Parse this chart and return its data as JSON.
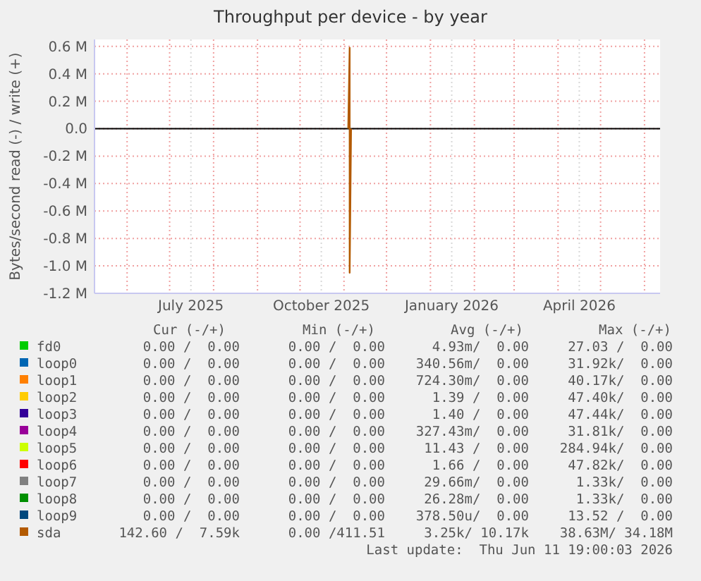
{
  "chart_data": {
    "type": "line",
    "title": "Throughput per device - by year",
    "ylabel": "Bytes/second read (-) / write (+)",
    "xlim": [
      "2025-05-09",
      "2026-06-12"
    ],
    "ylim": [
      -1.2,
      0.65
    ],
    "xticks": [
      {
        "value": "2025-06-01",
        "label": null
      },
      {
        "value": "2025-07-01",
        "label": null
      },
      {
        "value": "2025-07-16",
        "label": "July 2025"
      },
      {
        "value": "2025-08-01",
        "label": null
      },
      {
        "value": "2025-09-01",
        "label": null
      },
      {
        "value": "2025-10-01",
        "label": null
      },
      {
        "value": "2025-10-16",
        "label": "October 2025"
      },
      {
        "value": "2025-11-01",
        "label": null
      },
      {
        "value": "2025-12-01",
        "label": null
      },
      {
        "value": "2026-01-01",
        "label": null
      },
      {
        "value": "2026-01-16",
        "label": "January 2026"
      },
      {
        "value": "2026-02-01",
        "label": null
      },
      {
        "value": "2026-03-01",
        "label": null
      },
      {
        "value": "2026-04-01",
        "label": null
      },
      {
        "value": "2026-04-16",
        "label": "April 2026"
      },
      {
        "value": "2026-05-01",
        "label": null
      },
      {
        "value": "2026-06-01",
        "label": null
      }
    ],
    "yticks": [
      {
        "value": 0.6,
        "label": "0.6 M"
      },
      {
        "value": 0.4,
        "label": "0.4 M"
      },
      {
        "value": 0.2,
        "label": "0.2 M"
      },
      {
        "value": 0,
        "label": "0.0"
      },
      {
        "value": -0.2,
        "label": "-0.2 M"
      },
      {
        "value": -0.4,
        "label": "-0.4 M"
      },
      {
        "value": -0.6,
        "label": "-0.6 M"
      },
      {
        "value": -0.8,
        "label": "-0.8 M"
      },
      {
        "value": -1.0,
        "label": "-1.0 M"
      },
      {
        "value": -1.2,
        "label": "-1.2 M"
      }
    ],
    "grid": true,
    "legend": "bottom",
    "ref_lines": [
      {
        "axis": "y",
        "value": 0,
        "color": "#000000"
      }
    ],
    "series": [
      {
        "name": "fd0",
        "color": "#00cc00",
        "values": [
          null
        ]
      },
      {
        "name": "loop0",
        "color": "#0066b3",
        "values": [
          null
        ]
      },
      {
        "name": "loop1",
        "color": "#ff8000",
        "values": [
          null
        ]
      },
      {
        "name": "loop2",
        "color": "#ffcc00",
        "values": [
          null
        ]
      },
      {
        "name": "loop3",
        "color": "#330099",
        "values": [
          null
        ]
      },
      {
        "name": "loop4",
        "color": "#990099",
        "values": [
          null
        ]
      },
      {
        "name": "loop5",
        "color": "#ccff00",
        "values": [
          null
        ]
      },
      {
        "name": "loop6",
        "color": "#ff0000",
        "values": [
          null
        ]
      },
      {
        "name": "loop7",
        "color": "#808080",
        "values": [
          null
        ]
      },
      {
        "name": "loop8",
        "color": "#008f00",
        "values": [
          null
        ]
      },
      {
        "name": "loop9",
        "color": "#00487d",
        "values": [
          null
        ]
      },
      {
        "name": "sda",
        "color": "#b35a00",
        "x": [
          "2025-11-04",
          "2025-11-05",
          "2025-11-05",
          "2025-11-06"
        ],
        "values": [
          0,
          0.59,
          -1.05,
          0
        ]
      }
    ],
    "annotations": [
      "Cur (-/+)",
      "Min (-/+)",
      "Avg (-/+)",
      "Max (-/+)",
      "0.00 /  0.00",
      "0.00 /  0.00",
      "4.93m/  0.00",
      "27.03 /  0.00",
      "0.00 /  0.00",
      "0.00 /  0.00",
      "340.56m/  0.00",
      "31.92k/  0.00",
      "0.00 /  0.00",
      "0.00 /  0.00",
      "724.30m/  0.00",
      "40.17k/  0.00",
      "0.00 /  0.00",
      "0.00 /  0.00",
      "1.39 /  0.00",
      "47.40k/  0.00",
      "0.00 /  0.00",
      "0.00 /  0.00",
      "1.40 /  0.00",
      "47.44k/  0.00",
      "0.00 /  0.00",
      "0.00 /  0.00",
      "327.43m/  0.00",
      "31.81k/  0.00",
      "0.00 /  0.00",
      "0.00 /  0.00",
      "11.43 /  0.00",
      "284.94k/  0.00",
      "0.00 /  0.00",
      "0.00 /  0.00",
      "1.66 /  0.00",
      "47.82k/  0.00",
      "0.00 /  0.00",
      "0.00 /  0.00",
      "29.66m/  0.00",
      "1.33k/  0.00",
      "0.00 /  0.00",
      "0.00 /  0.00",
      "26.28m/  0.00",
      "1.33k/  0.00",
      "0.00 /  0.00",
      "0.00 /  0.00",
      "378.50u/  0.00",
      "13.52 /  0.00",
      "142.60 /  7.59k",
      "0.00 /411.51",
      "3.25k/ 10.17k",
      "38.63M/ 34.18M",
      "Last update:  Thu Jun 11 19:00:03 2026"
    ]
  }
}
